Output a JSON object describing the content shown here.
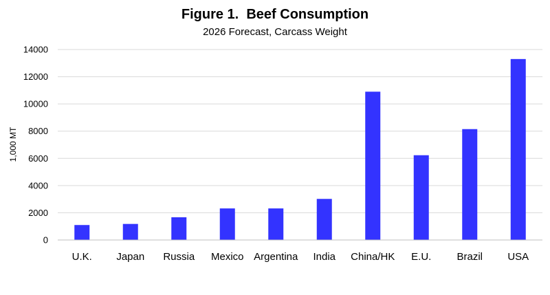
{
  "chart_data": {
    "type": "bar",
    "title": "Figure 1.  Beef Consumption",
    "subtitle": "2026 Forecast, Carcass Weight",
    "xlabel": "",
    "ylabel": "1,000 MT",
    "categories": [
      "U.K.",
      "Japan",
      "Russia",
      "Mexico",
      "Argentina",
      "India",
      "China/HK",
      "E.U.",
      "Brazil",
      "USA"
    ],
    "values": [
      1100,
      1180,
      1670,
      2320,
      2320,
      3020,
      10900,
      6230,
      8150,
      13300
    ],
    "ylim": [
      0,
      14000
    ],
    "yticks": [
      "0",
      "2000",
      "4000",
      "6000",
      "8000",
      "10000",
      "12000",
      "14000"
    ],
    "grid": true,
    "legend": "none",
    "colors": {
      "bar": "#3333ff",
      "grid": "#d9d9d9",
      "axis": "#bfbfbf"
    }
  }
}
